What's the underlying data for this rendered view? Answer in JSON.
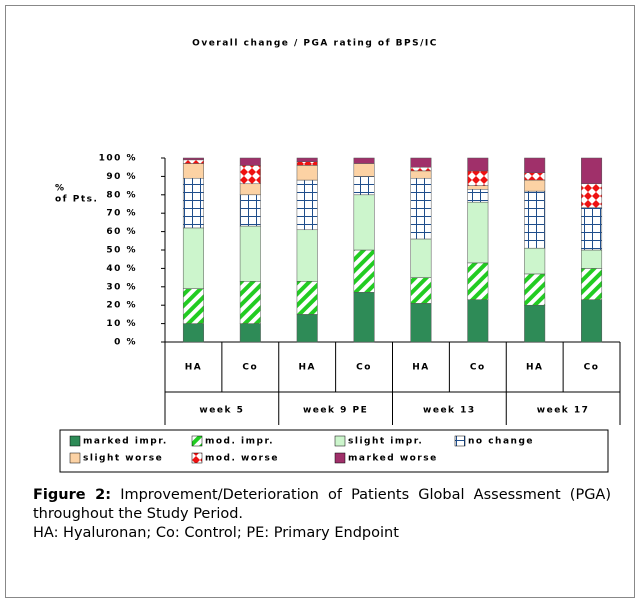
{
  "chart_data": {
    "type": "stacked_bar",
    "title": "Overall change / PGA rating of BPS/IC",
    "y_label": "%",
    "y_label2": "of Pts.",
    "categories": [
      "HA",
      "Co",
      "HA",
      "Co",
      "HA",
      "Co",
      "HA",
      "Co"
    ],
    "groups": [
      "week 5",
      "week 9 PE",
      "week 13",
      "week 17"
    ],
    "ylim": [
      0,
      100
    ],
    "yticks": [
      {
        "value": 0,
        "label": "0 %"
      },
      {
        "value": 10,
        "label": "10 %"
      },
      {
        "value": 20,
        "label": "20 %"
      },
      {
        "value": 30,
        "label": "30 %"
      },
      {
        "value": 40,
        "label": "40 %"
      },
      {
        "value": 50,
        "label": "50 %"
      },
      {
        "value": 60,
        "label": "60 %"
      },
      {
        "value": 70,
        "label": "70 %"
      },
      {
        "value": 80,
        "label": "80 %"
      },
      {
        "value": 90,
        "label": "90 %"
      },
      {
        "value": 100,
        "label": "100 %"
      }
    ],
    "series": [
      {
        "name": "marked impr.",
        "color": "#2e8b57",
        "pattern": "solid",
        "values": [
          10,
          10,
          15,
          27,
          21,
          23,
          20,
          23
        ]
      },
      {
        "name": "mod. impr.",
        "color": "#22cc22",
        "pattern": "diagonal",
        "values": [
          19,
          23,
          18,
          23,
          14,
          20,
          17,
          17
        ]
      },
      {
        "name": "slight impr.",
        "color": "#ccf5cc",
        "pattern": "solid",
        "values": [
          33,
          30,
          28,
          30,
          21,
          33,
          14,
          10
        ]
      },
      {
        "name": "no change",
        "color": "#1f4e8c",
        "pattern": "grid",
        "values": [
          27,
          17,
          27,
          10,
          33,
          7,
          31,
          23
        ]
      },
      {
        "name": "slight worse",
        "color": "#fcd2a4",
        "pattern": "solid",
        "values": [
          8,
          6,
          8,
          7,
          4,
          2,
          6,
          0
        ]
      },
      {
        "name": "mod. worse",
        "color": "#ee1111",
        "pattern": "checker",
        "values": [
          2,
          10,
          2,
          0,
          2,
          8,
          4,
          13
        ]
      },
      {
        "name": "marked worse",
        "color": "#a0306a",
        "pattern": "solid",
        "values": [
          1,
          4,
          2,
          3,
          5,
          7,
          8,
          14
        ]
      }
    ]
  },
  "caption": {
    "label": "Figure 2:",
    "text": "Improvement/Deterioration of Patients Global Assessment (PGA) throughout the Study Period.",
    "note": "HA: Hyaluronan; Co: Control; PE: Primary Endpoint"
  }
}
